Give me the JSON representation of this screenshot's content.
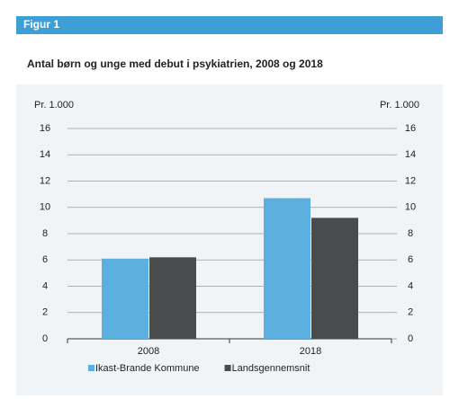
{
  "chart_data": {
    "type": "bar",
    "figure_label": "Figur 1",
    "title": "Antal børn og unge med debut i psykiatrien, 2008 og 2018",
    "y_label": "Pr. 1.000",
    "y2_label": "Pr. 1.000",
    "categories": [
      "2008",
      "2018"
    ],
    "series": [
      {
        "name": "Ikast-Brande Kommune",
        "color": "#5bb0e0",
        "values": [
          6.1,
          10.7
        ]
      },
      {
        "name": "Landsgennemsnit",
        "color": "#4a4b4d",
        "values": [
          6.2,
          9.2
        ]
      }
    ],
    "ylim": [
      0,
      16
    ],
    "yticks": [
      0,
      2,
      4,
      6,
      8,
      10,
      12,
      14,
      16
    ],
    "y2lim": [
      0,
      16
    ],
    "y2ticks": [
      0,
      2,
      4,
      6,
      8,
      10,
      12,
      14,
      16
    ],
    "grid": true,
    "legend": "bottom"
  }
}
